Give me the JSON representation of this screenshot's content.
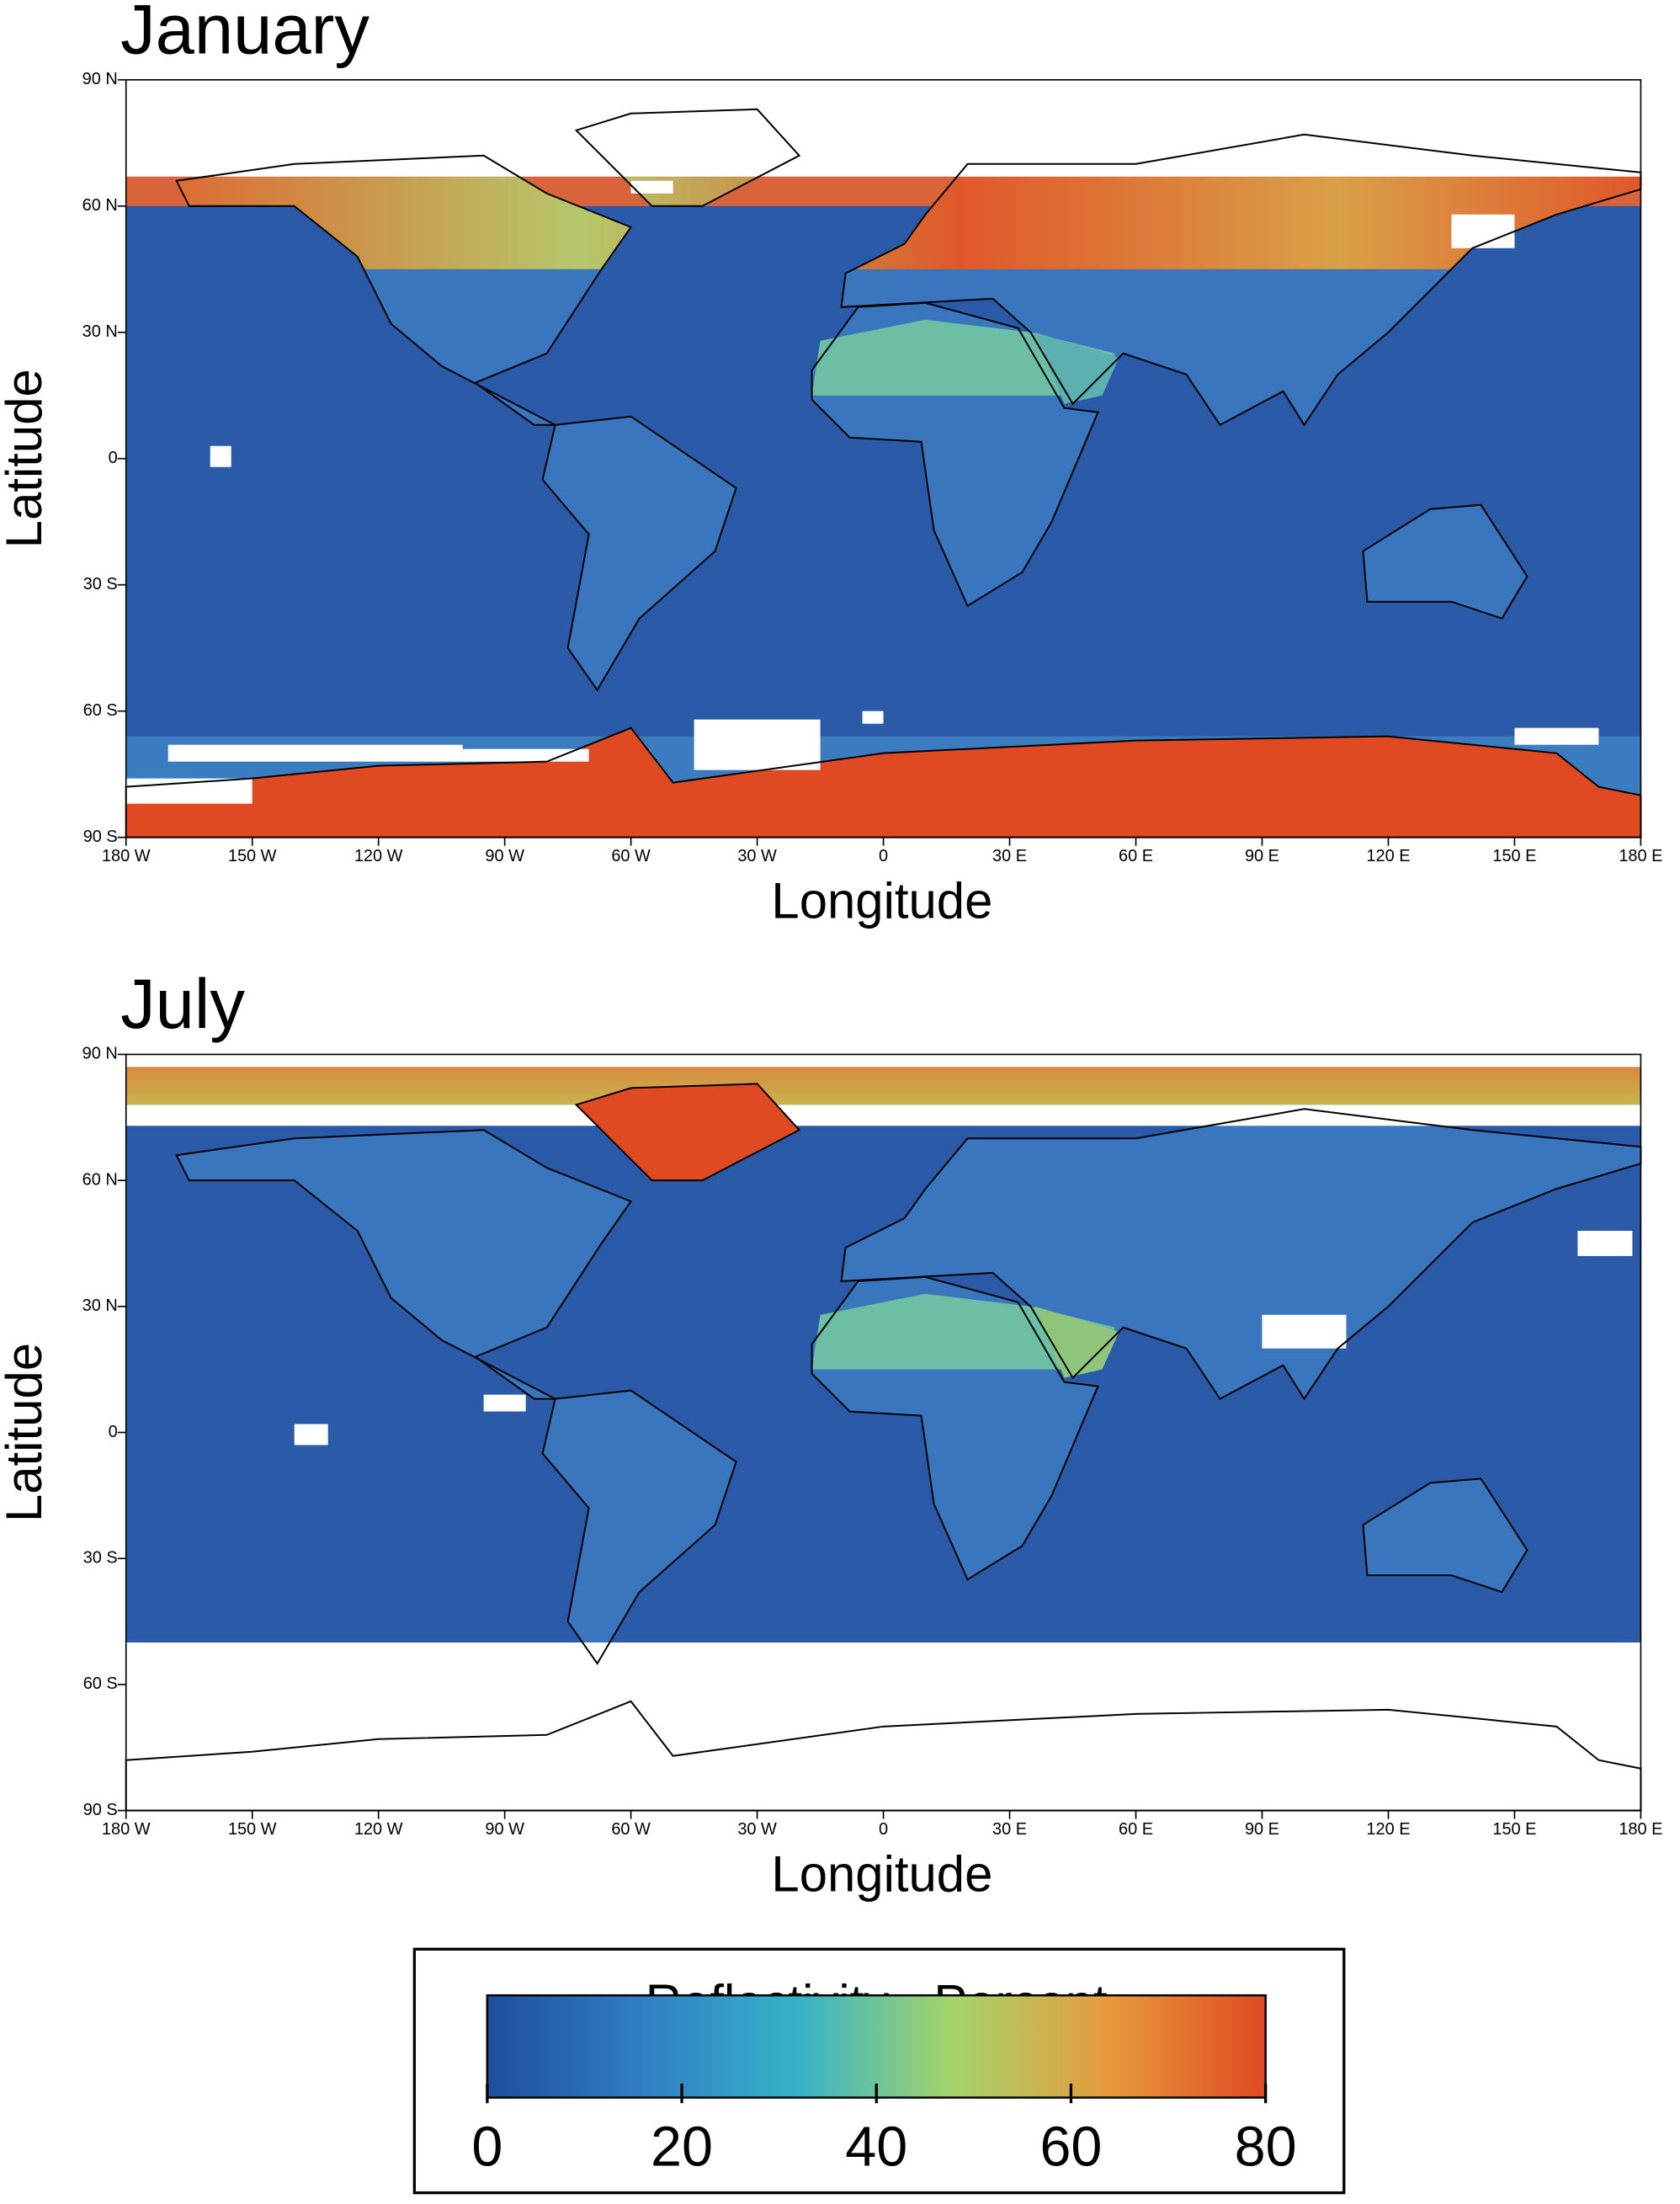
{
  "maps": [
    {
      "title": "January",
      "y_label": "Latitude",
      "x_label": "Longitude",
      "yticks": [
        "90 N",
        "60 N",
        "30 N",
        "0",
        "30 S",
        "60 S",
        "90 S"
      ],
      "xticks": [
        "180 W",
        "150 W",
        "120 W",
        "90 W",
        "60 W",
        "30 W",
        "0",
        "30 E",
        "60 E",
        "90 E",
        "120 E",
        "150 E",
        "180 E"
      ]
    },
    {
      "title": "July",
      "y_label": "Latitude",
      "x_label": "Longitude",
      "yticks": [
        "90 N",
        "60 N",
        "30 N",
        "0",
        "30 S",
        "60 S",
        "90 S"
      ],
      "xticks": [
        "180 W",
        "150 W",
        "120 W",
        "90 W",
        "60 W",
        "30 W",
        "0",
        "30 E",
        "60 E",
        "90 E",
        "120 E",
        "150 E",
        "180 E"
      ]
    }
  ],
  "colorbar": {
    "title": "Reflectivity - Percent",
    "lim": [
      0,
      80
    ],
    "ticks": [
      0,
      20,
      40,
      60,
      80
    ],
    "colors": [
      "#1f4e9c",
      "#2f7fc4",
      "#36b3c8",
      "#a6d46a",
      "#e89a3c",
      "#e04a22"
    ]
  }
}
